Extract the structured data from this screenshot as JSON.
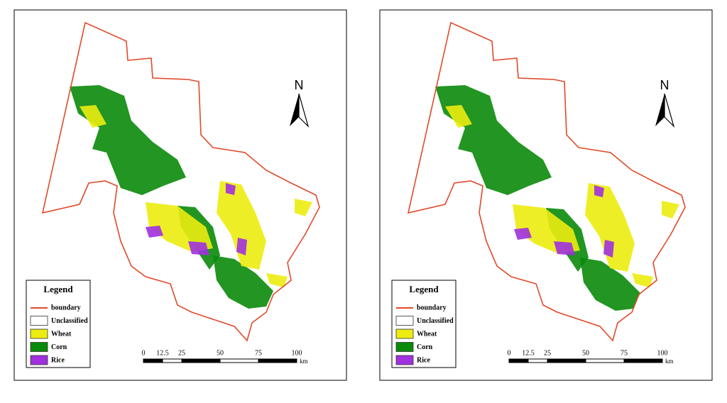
{
  "maps": [
    {
      "north": "N",
      "legend": {
        "title": "Legend",
        "items": [
          "boundary",
          "Unclassified",
          "Wheat",
          "Corn",
          "Rice"
        ]
      },
      "scale": {
        "ticks": [
          0,
          12.5,
          25,
          50,
          75,
          100
        ],
        "unit": "km"
      }
    },
    {
      "north": "N",
      "legend": {
        "title": "Legend",
        "items": [
          "boundary",
          "Unclassified",
          "Wheat",
          "Corn",
          "Rice"
        ]
      },
      "scale": {
        "ticks": [
          0,
          12.5,
          25,
          50,
          75,
          100
        ],
        "unit": "km"
      }
    }
  ]
}
